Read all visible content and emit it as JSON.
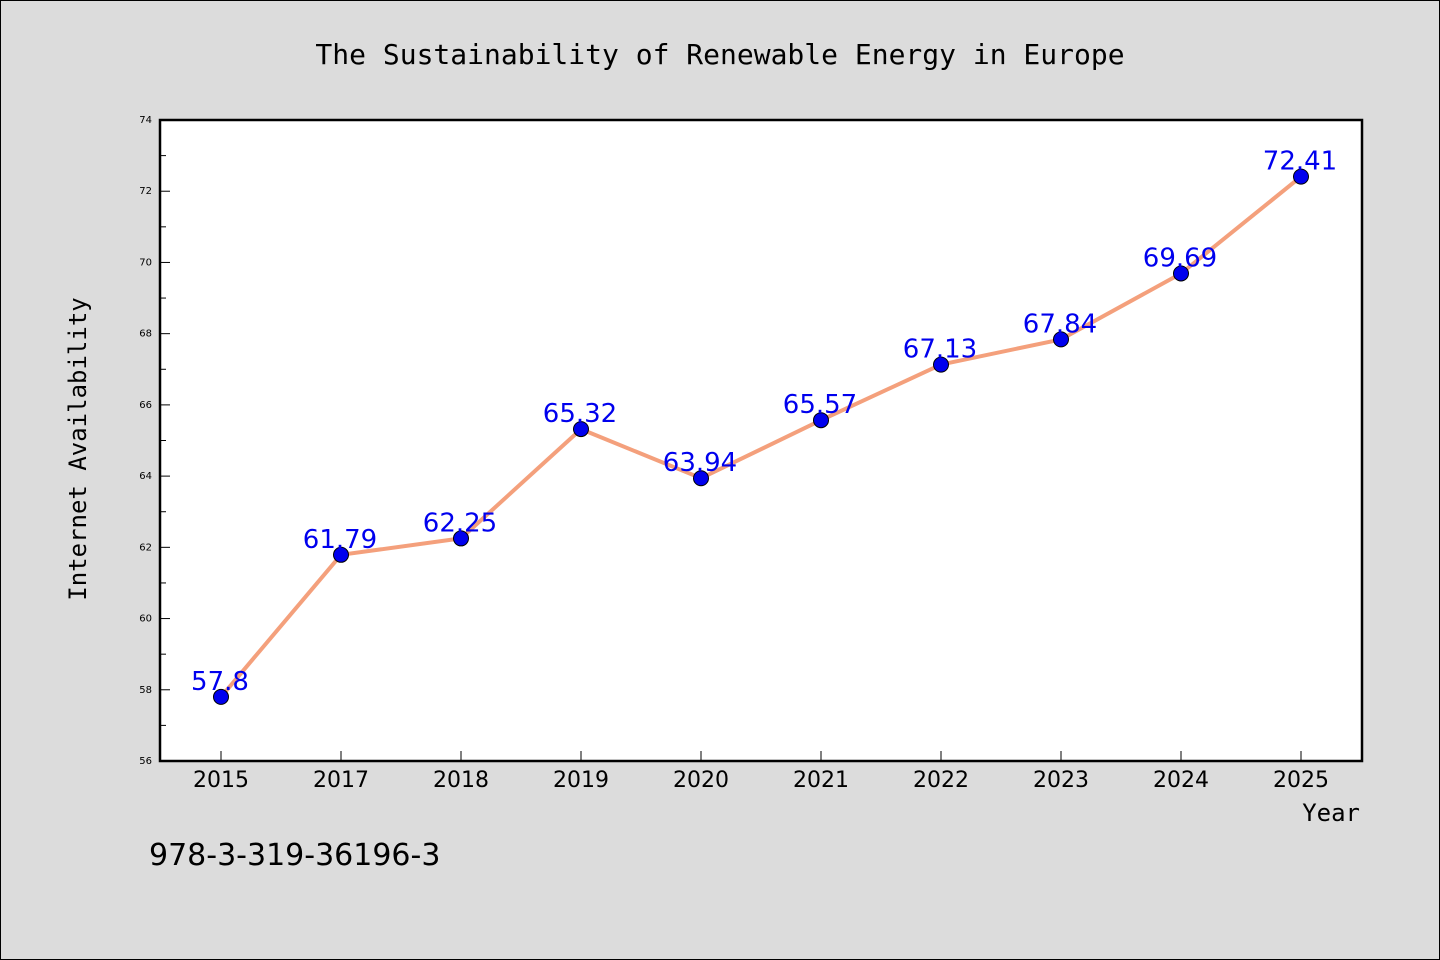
{
  "chart_data": {
    "type": "line",
    "title": "The Sustainability of Renewable Energy in Europe",
    "xlabel": "Year",
    "ylabel": "Internet Availability",
    "categories": [
      "2015",
      "2017",
      "2018",
      "2019",
      "2020",
      "2021",
      "2022",
      "2023",
      "2024",
      "2025"
    ],
    "series": [
      {
        "values": [
          57.8,
          61.79,
          62.25,
          65.32,
          63.94,
          65.57,
          67.13,
          67.84,
          69.69,
          72.41
        ],
        "data_labels": [
          "57.8",
          "61.79",
          "62.25",
          "65.32",
          "63.94",
          "65.57",
          "67.13",
          "67.84",
          "69.69",
          "72.41"
        ]
      }
    ],
    "ylim": [
      56,
      74
    ],
    "yticks": [
      "56",
      "58",
      "60",
      "62",
      "64",
      "66",
      "68",
      "70",
      "72",
      "74"
    ],
    "grid": false,
    "line_color": "#f4a07c",
    "marker_color": "#0000ee",
    "label_color": "#0000ee",
    "annotation": "978-3-319-36196-3"
  }
}
